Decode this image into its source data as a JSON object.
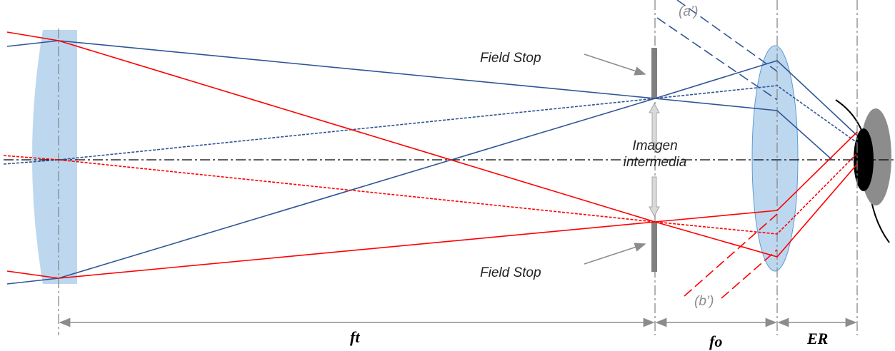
{
  "labels": {
    "field_stop_top": "Field Stop",
    "field_stop_bottom": "Field Stop",
    "intermediate_image": [
      "Imagen",
      "intermedia"
    ],
    "a_prime": "(a’)",
    "b_prime": "(b’)",
    "ft": "ft",
    "fo": "fo",
    "er": "ER"
  }
}
